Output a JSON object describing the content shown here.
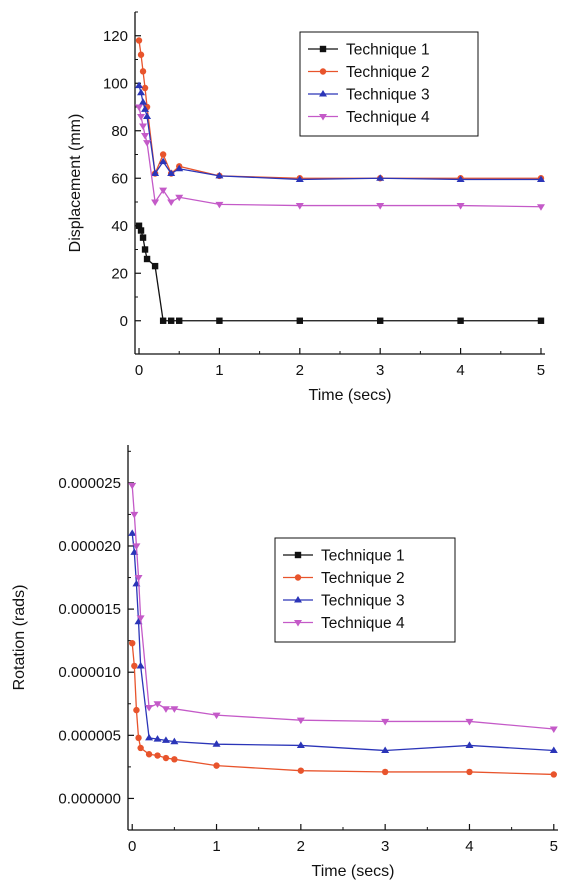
{
  "chart_data": [
    {
      "type": "line",
      "title": "",
      "xlabel": "Time (secs)",
      "ylabel": "Displacement (mm)",
      "xlim": [
        -0.05,
        5.05
      ],
      "ylim": [
        -14,
        130
      ],
      "xticks": [
        0,
        1,
        2,
        3,
        4,
        5
      ],
      "xtick_labels": [
        "0",
        "1",
        "2",
        "3",
        "4",
        "5"
      ],
      "yticks": [
        0,
        20,
        40,
        60,
        80,
        100,
        120
      ],
      "ytick_labels": [
        "0",
        "20",
        "40",
        "60",
        "80",
        "100",
        "120"
      ],
      "grid": false,
      "legend_position": "top-right",
      "series": [
        {
          "name": "Technique 1",
          "color": "#111111",
          "marker": "square",
          "x": [
            0,
            0.025,
            0.05,
            0.075,
            0.1,
            0.2,
            0.3,
            0.4,
            0.5,
            1,
            2,
            3,
            4,
            5
          ],
          "y": [
            40,
            38,
            35,
            30,
            26,
            23,
            0,
            0,
            0,
            0,
            0,
            0,
            0,
            0
          ]
        },
        {
          "name": "Technique 2",
          "color": "#e8542c",
          "marker": "circle",
          "x": [
            0,
            0.025,
            0.05,
            0.075,
            0.1,
            0.2,
            0.3,
            0.4,
            0.5,
            1,
            2,
            3,
            4,
            5
          ],
          "y": [
            118,
            112,
            105,
            98,
            90,
            62,
            70,
            62,
            65,
            61,
            60,
            60,
            60,
            60
          ]
        },
        {
          "name": "Technique 3",
          "color": "#2b35b8",
          "marker": "triangle-up",
          "x": [
            0,
            0.025,
            0.05,
            0.075,
            0.1,
            0.2,
            0.3,
            0.4,
            0.5,
            1,
            2,
            3,
            4,
            5
          ],
          "y": [
            99,
            96,
            92,
            89,
            86,
            62,
            67,
            62,
            64,
            61,
            59.5,
            60,
            59.5,
            59.5
          ]
        },
        {
          "name": "Technique 4",
          "color": "#c45ac8",
          "marker": "triangle-down",
          "x": [
            0,
            0.025,
            0.05,
            0.075,
            0.1,
            0.2,
            0.3,
            0.4,
            0.5,
            1,
            2,
            3,
            4,
            5
          ],
          "y": [
            90,
            86,
            82,
            78,
            75,
            50,
            55,
            50,
            52,
            49,
            48.5,
            48.5,
            48.5,
            48
          ]
        }
      ]
    },
    {
      "type": "line",
      "title": "",
      "xlabel": "Time (secs)",
      "ylabel": "Rotation (rads)",
      "xlim": [
        -0.05,
        5.05
      ],
      "ylim": [
        -2.5e-06,
        2.8e-05
      ],
      "xticks": [
        0,
        1,
        2,
        3,
        4,
        5
      ],
      "xtick_labels": [
        "0",
        "1",
        "2",
        "3",
        "4",
        "5"
      ],
      "yticks": [
        0,
        5e-06,
        1e-05,
        1.5e-05,
        2e-05,
        2.5e-05
      ],
      "ytick_labels": [
        "0.000000",
        "0.000005",
        "0.000010",
        "0.000015",
        "0.000020",
        "0.000025"
      ],
      "grid": false,
      "legend_position": "top-right",
      "series": [
        {
          "name": "Technique 1",
          "color": "#111111",
          "marker": "square",
          "x": [],
          "y": []
        },
        {
          "name": "Technique 2",
          "color": "#e8542c",
          "marker": "circle",
          "x": [
            0,
            0.025,
            0.05,
            0.075,
            0.1,
            0.2,
            0.3,
            0.4,
            0.5,
            1,
            2,
            3,
            4,
            5
          ],
          "y": [
            1.23e-05,
            1.05e-05,
            7e-06,
            4.8e-06,
            4e-06,
            3.5e-06,
            3.4e-06,
            3.2e-06,
            3.1e-06,
            2.6e-06,
            2.2e-06,
            2.1e-06,
            2.1e-06,
            1.9e-06
          ]
        },
        {
          "name": "Technique 3",
          "color": "#2b35b8",
          "marker": "triangle-up",
          "x": [
            0,
            0.025,
            0.05,
            0.075,
            0.1,
            0.2,
            0.3,
            0.4,
            0.5,
            1,
            2,
            3,
            4,
            5
          ],
          "y": [
            2.1e-05,
            1.95e-05,
            1.7e-05,
            1.4e-05,
            1.05e-05,
            4.8e-06,
            4.7e-06,
            4.6e-06,
            4.5e-06,
            4.3e-06,
            4.2e-06,
            3.8e-06,
            4.2e-06,
            3.8e-06
          ]
        },
        {
          "name": "Technique 4",
          "color": "#c45ac8",
          "marker": "triangle-down",
          "x": [
            0,
            0.025,
            0.05,
            0.075,
            0.1,
            0.2,
            0.3,
            0.4,
            0.5,
            1,
            2,
            3,
            4,
            5
          ],
          "y": [
            2.48e-05,
            2.25e-05,
            2e-05,
            1.75e-05,
            1.43e-05,
            7.2e-06,
            7.5e-06,
            7.1e-06,
            7.1e-06,
            6.6e-06,
            6.2e-06,
            6.1e-06,
            6.1e-06,
            5.5e-06
          ]
        }
      ]
    }
  ]
}
